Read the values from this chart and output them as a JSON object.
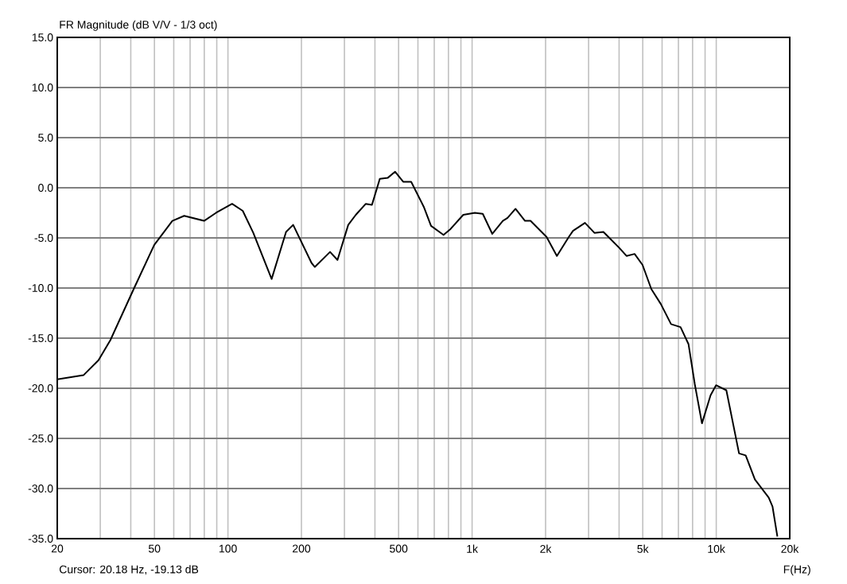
{
  "chart_data": {
    "type": "line",
    "title": "FR Magnitude (dB V/V - 1/3 oct)",
    "xlabel": "F(Hz)",
    "annotations": [
      "Cursor: 20.18 Hz, -19.13 dB"
    ],
    "log": "x",
    "grid": true,
    "marker": "none",
    "line_style": "solid",
    "xlim": [
      20,
      20000
    ],
    "ylim": [
      -35,
      15
    ],
    "xticks": [
      20,
      50,
      100,
      200,
      500,
      {
        "value": 1000,
        "label": "1k"
      },
      {
        "value": 2000,
        "label": "2k"
      },
      {
        "value": 5000,
        "label": "5k"
      },
      {
        "value": 10000,
        "label": "10k"
      },
      {
        "value": 20000,
        "label": "20k"
      }
    ],
    "yticks": [
      {
        "value": -35,
        "label": "-35.0"
      },
      {
        "value": -30,
        "label": "-30.0"
      },
      {
        "value": -25,
        "label": "-25.0"
      },
      {
        "value": -20,
        "label": "-20.0"
      },
      {
        "value": -15,
        "label": "-15.0"
      },
      {
        "value": -10,
        "label": "-10.0"
      },
      {
        "value": -5,
        "label": "-5.0"
      },
      {
        "value": 0,
        "label": "0.0"
      },
      {
        "value": 5,
        "label": "5.0"
      },
      {
        "value": 10,
        "label": "10.0"
      },
      {
        "value": 15,
        "label": "15.0"
      }
    ],
    "series": [
      {
        "color": "#000000",
        "x": [
          20,
          25.6,
          29.5,
          33,
          41.3,
          49.9,
          59.2,
          66.2,
          79.9,
          89.4,
          104,
          115,
          127,
          151,
          173,
          185,
          220,
          227,
          262,
          281,
          311,
          334,
          367,
          389,
          419,
          452,
          484,
          522,
          563,
          634,
          679,
          764,
          817,
          920,
          1026,
          1106,
          1210,
          1336,
          1397,
          1506,
          1647,
          1735,
          2018,
          2225,
          2490,
          2590,
          2900,
          3170,
          3450,
          4010,
          4290,
          4630,
          4990,
          5420,
          5930,
          6530,
          7140,
          7700,
          8170,
          8740,
          9480,
          9980,
          11000,
          12400,
          13200,
          14400,
          16400,
          17000,
          17800
        ],
        "values": [
          -19.1,
          -18.7,
          -17.2,
          -15.2,
          -10.0,
          -5.7,
          -3.3,
          -2.8,
          -3.3,
          -2.5,
          -1.6,
          -2.3,
          -4.5,
          -9.1,
          -4.4,
          -3.7,
          -7.5,
          -7.9,
          -6.4,
          -7.2,
          -3.7,
          -2.7,
          -1.6,
          -1.7,
          0.9,
          1.0,
          1.6,
          0.6,
          0.6,
          -1.9,
          -3.8,
          -4.7,
          -4.1,
          -2.7,
          -2.5,
          -2.6,
          -4.6,
          -3.3,
          -3.0,
          -2.1,
          -3.3,
          -3.3,
          -4.9,
          -6.8,
          -4.9,
          -4.3,
          -3.5,
          -4.5,
          -4.4,
          -6.0,
          -6.8,
          -6.6,
          -7.7,
          -10.1,
          -11.6,
          -13.6,
          -13.9,
          -15.6,
          -19.6,
          -23.5,
          -20.7,
          -19.7,
          -20.2,
          -26.5,
          -26.7,
          -29.1,
          -30.9,
          -31.8,
          -34.8
        ]
      }
    ]
  }
}
